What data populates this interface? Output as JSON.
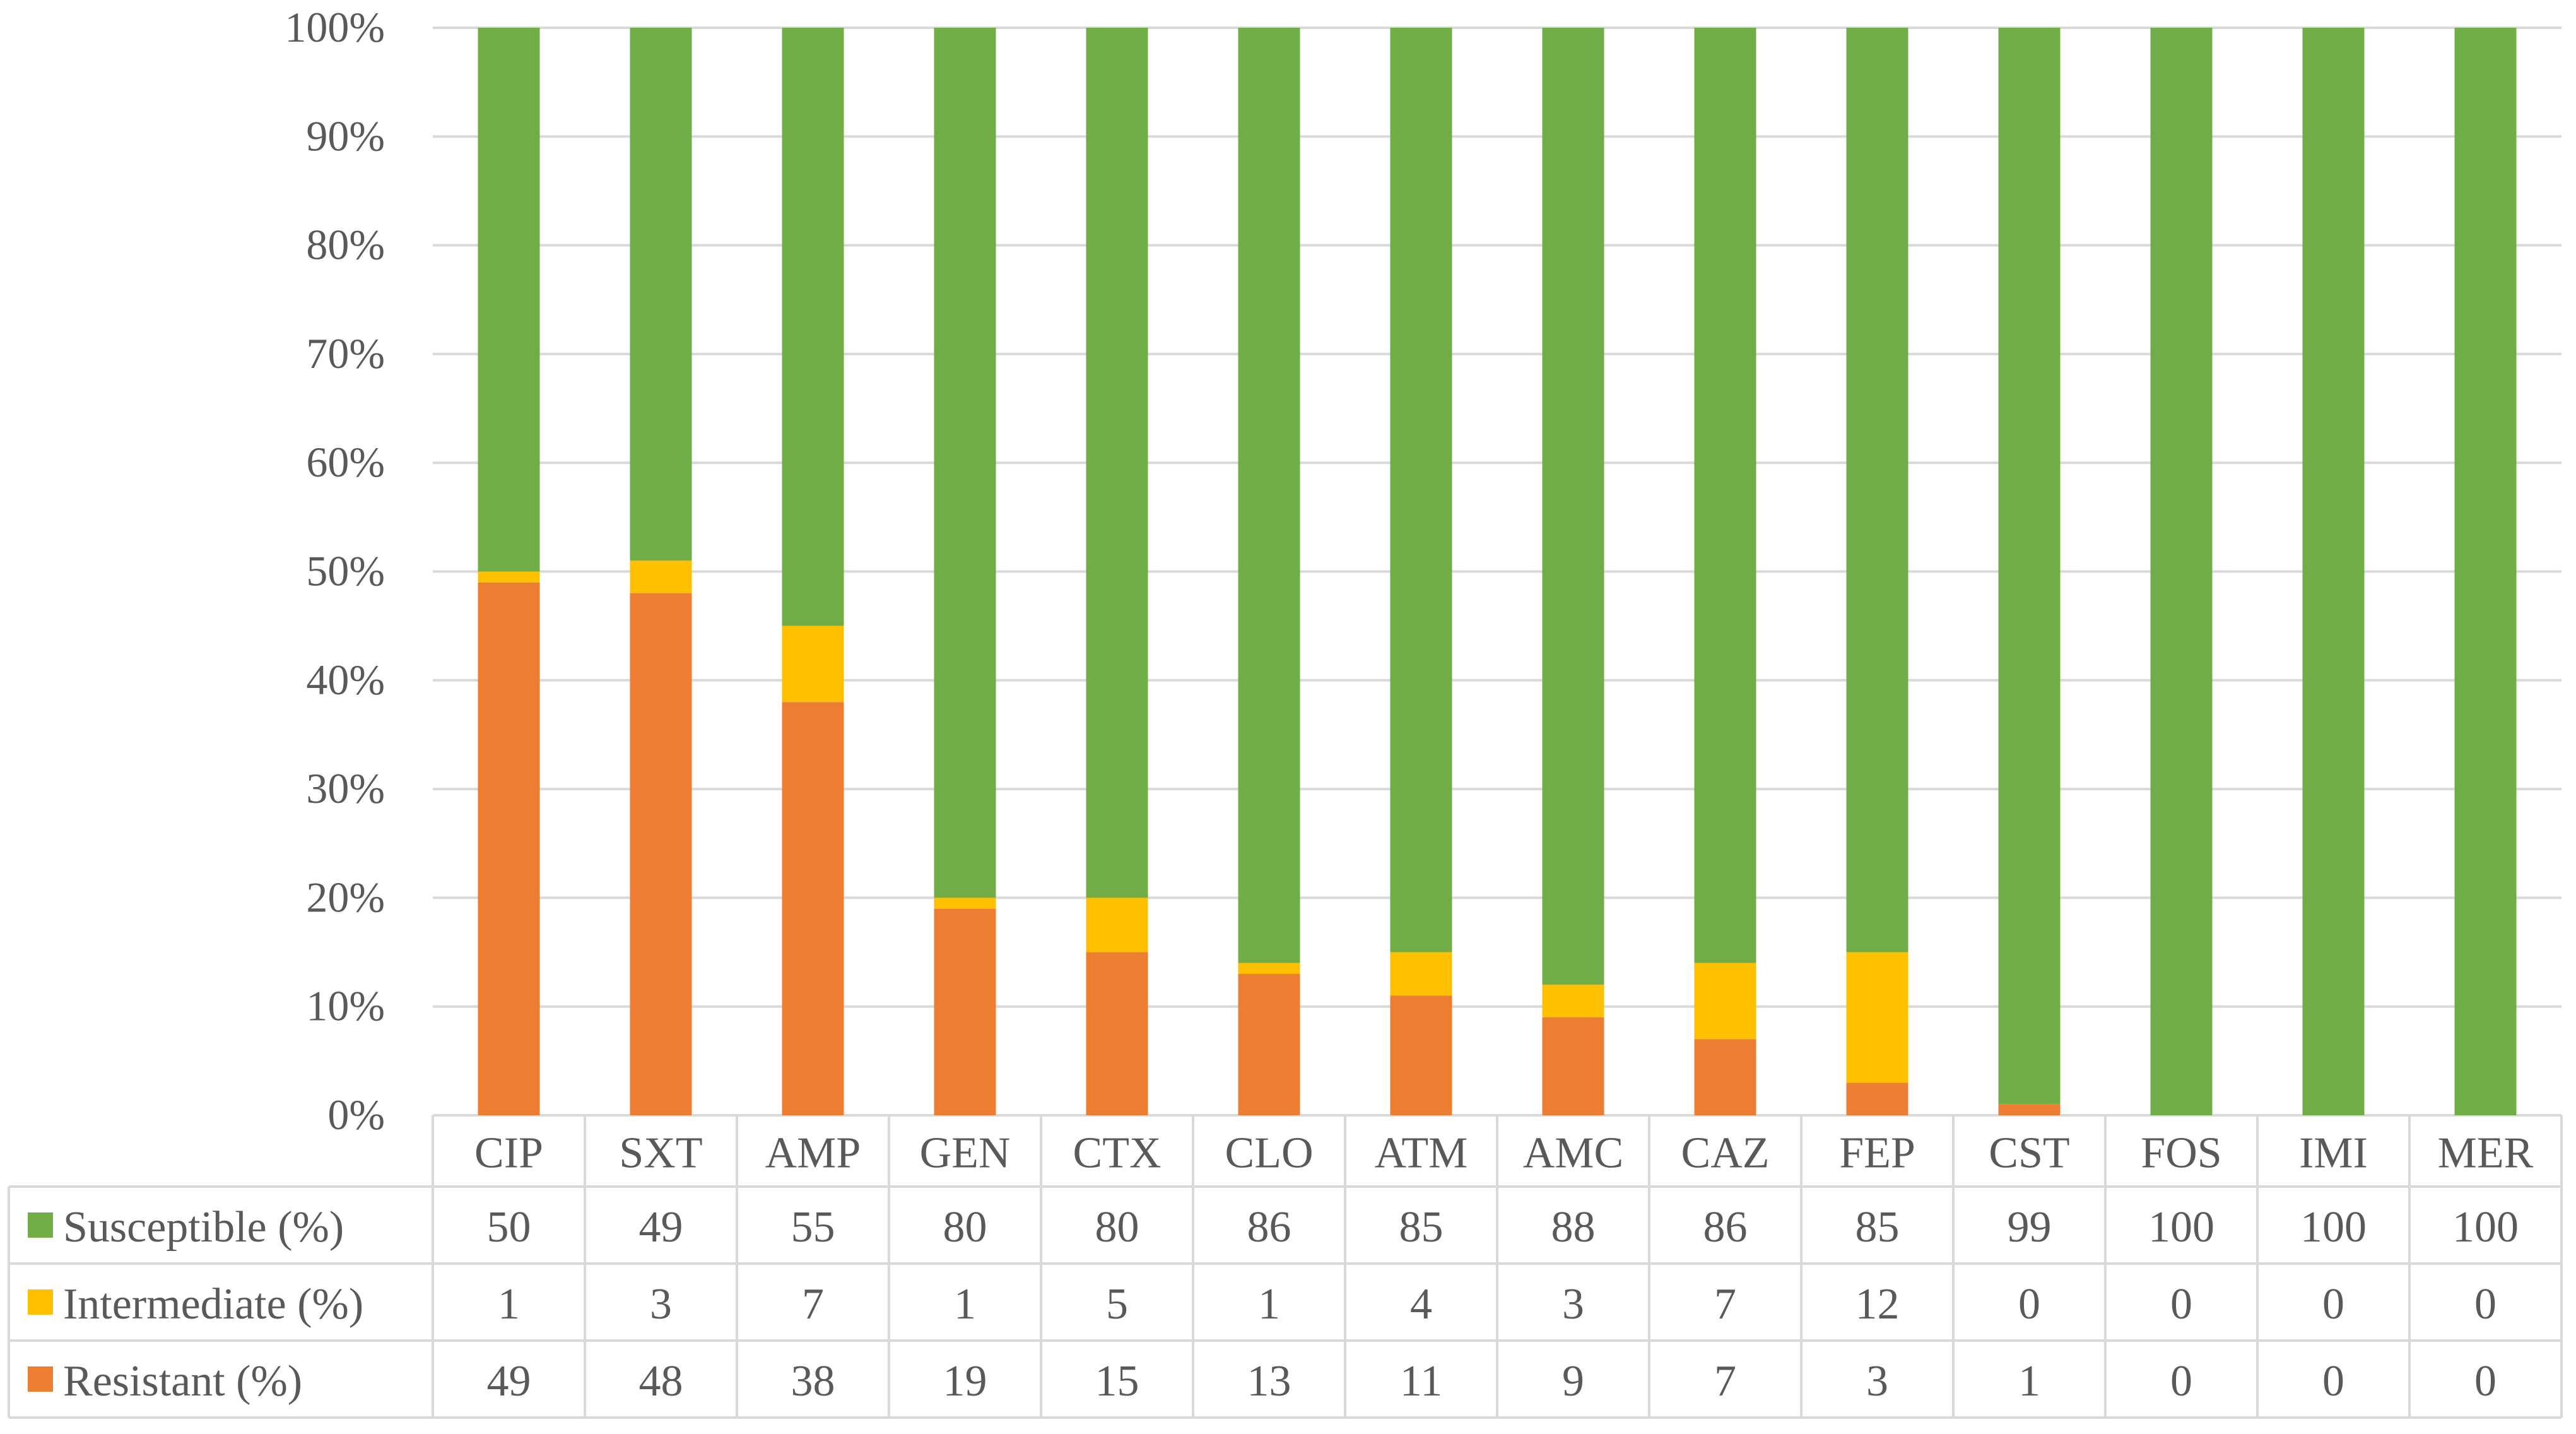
{
  "chart_data": {
    "type": "bar",
    "stacked": true,
    "categories": [
      "CIP",
      "SXT",
      "AMP",
      "GEN",
      "CTX",
      "CLO",
      "ATM",
      "AMC",
      "CAZ",
      "FEP",
      "CST",
      "FOS",
      "IMI",
      "MER"
    ],
    "series": [
      {
        "name": "Susceptible (%)",
        "key": "susceptible",
        "color": "#70AD47",
        "values": [
          50,
          49,
          55,
          80,
          80,
          86,
          85,
          88,
          86,
          85,
          99,
          100,
          100,
          100
        ]
      },
      {
        "name": "Intermediate (%)",
        "key": "intermediate",
        "color": "#FFC000",
        "values": [
          1,
          3,
          7,
          1,
          5,
          1,
          4,
          3,
          7,
          12,
          0,
          0,
          0,
          0
        ]
      },
      {
        "name": "Resistant (%)",
        "key": "resistant",
        "color": "#ED7D31",
        "values": [
          49,
          48,
          38,
          19,
          15,
          13,
          11,
          9,
          7,
          3,
          1,
          0,
          0,
          0
        ]
      }
    ],
    "stack_order_bottom_to_top": [
      "resistant",
      "intermediate",
      "susceptible"
    ],
    "ylim": [
      0,
      100
    ],
    "yticks": [
      "0%",
      "10%",
      "20%",
      "30%",
      "40%",
      "50%",
      "60%",
      "70%",
      "80%",
      "90%",
      "100%"
    ],
    "grid": true,
    "legend": "data-table"
  }
}
